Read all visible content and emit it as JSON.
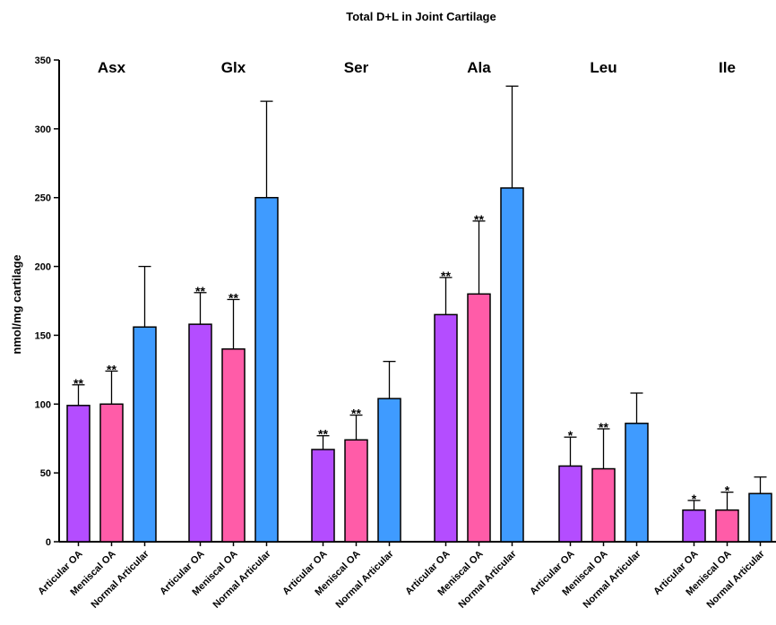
{
  "chart_data": {
    "type": "bar",
    "title": "Total D+L in Joint Cartilage",
    "ylabel": "nmol/mg cartilage",
    "xlabel": "",
    "ylim": [
      0,
      350
    ],
    "yticks": [
      0,
      50,
      100,
      150,
      200,
      250,
      300,
      350
    ],
    "series_colors": {
      "Articular OA": "#b44dff",
      "Meniscal OA": "#ff5ca8",
      "Normal Articular": "#3f9bff"
    },
    "groups": [
      {
        "name": "Asx",
        "bars": [
          {
            "label": "Articular OA",
            "value": 99,
            "error": 15,
            "sig": "**"
          },
          {
            "label": "Meniscal OA",
            "value": 100,
            "error": 24,
            "sig": "**"
          },
          {
            "label": "Normal Articular",
            "value": 156,
            "error": 44,
            "sig": ""
          }
        ]
      },
      {
        "name": "Glx",
        "bars": [
          {
            "label": "Articular OA",
            "value": 158,
            "error": 23,
            "sig": "**"
          },
          {
            "label": "Meniscal OA",
            "value": 140,
            "error": 36,
            "sig": "**"
          },
          {
            "label": "Normal Articular",
            "value": 250,
            "error": 70,
            "sig": ""
          }
        ]
      },
      {
        "name": "Ser",
        "bars": [
          {
            "label": "Articular OA",
            "value": 67,
            "error": 10,
            "sig": "**"
          },
          {
            "label": "Meniscal OA",
            "value": 74,
            "error": 18,
            "sig": "**"
          },
          {
            "label": "Normal Articular",
            "value": 104,
            "error": 27,
            "sig": ""
          }
        ]
      },
      {
        "name": "Ala",
        "bars": [
          {
            "label": "Articular OA",
            "value": 165,
            "error": 27,
            "sig": "**"
          },
          {
            "label": "Meniscal OA",
            "value": 180,
            "error": 53,
            "sig": "**"
          },
          {
            "label": "Normal Articular",
            "value": 257,
            "error": 74,
            "sig": ""
          }
        ]
      },
      {
        "name": "Leu",
        "bars": [
          {
            "label": "Articular OA",
            "value": 55,
            "error": 21,
            "sig": "*"
          },
          {
            "label": "Meniscal OA",
            "value": 53,
            "error": 29,
            "sig": "**"
          },
          {
            "label": "Normal Articular",
            "value": 86,
            "error": 22,
            "sig": ""
          }
        ]
      },
      {
        "name": "Ile",
        "bars": [
          {
            "label": "Articular OA",
            "value": 23,
            "error": 7,
            "sig": "*"
          },
          {
            "label": "Meniscal OA",
            "value": 23,
            "error": 13,
            "sig": "*"
          },
          {
            "label": "Normal Articular",
            "value": 35,
            "error": 12,
            "sig": ""
          }
        ]
      }
    ]
  }
}
